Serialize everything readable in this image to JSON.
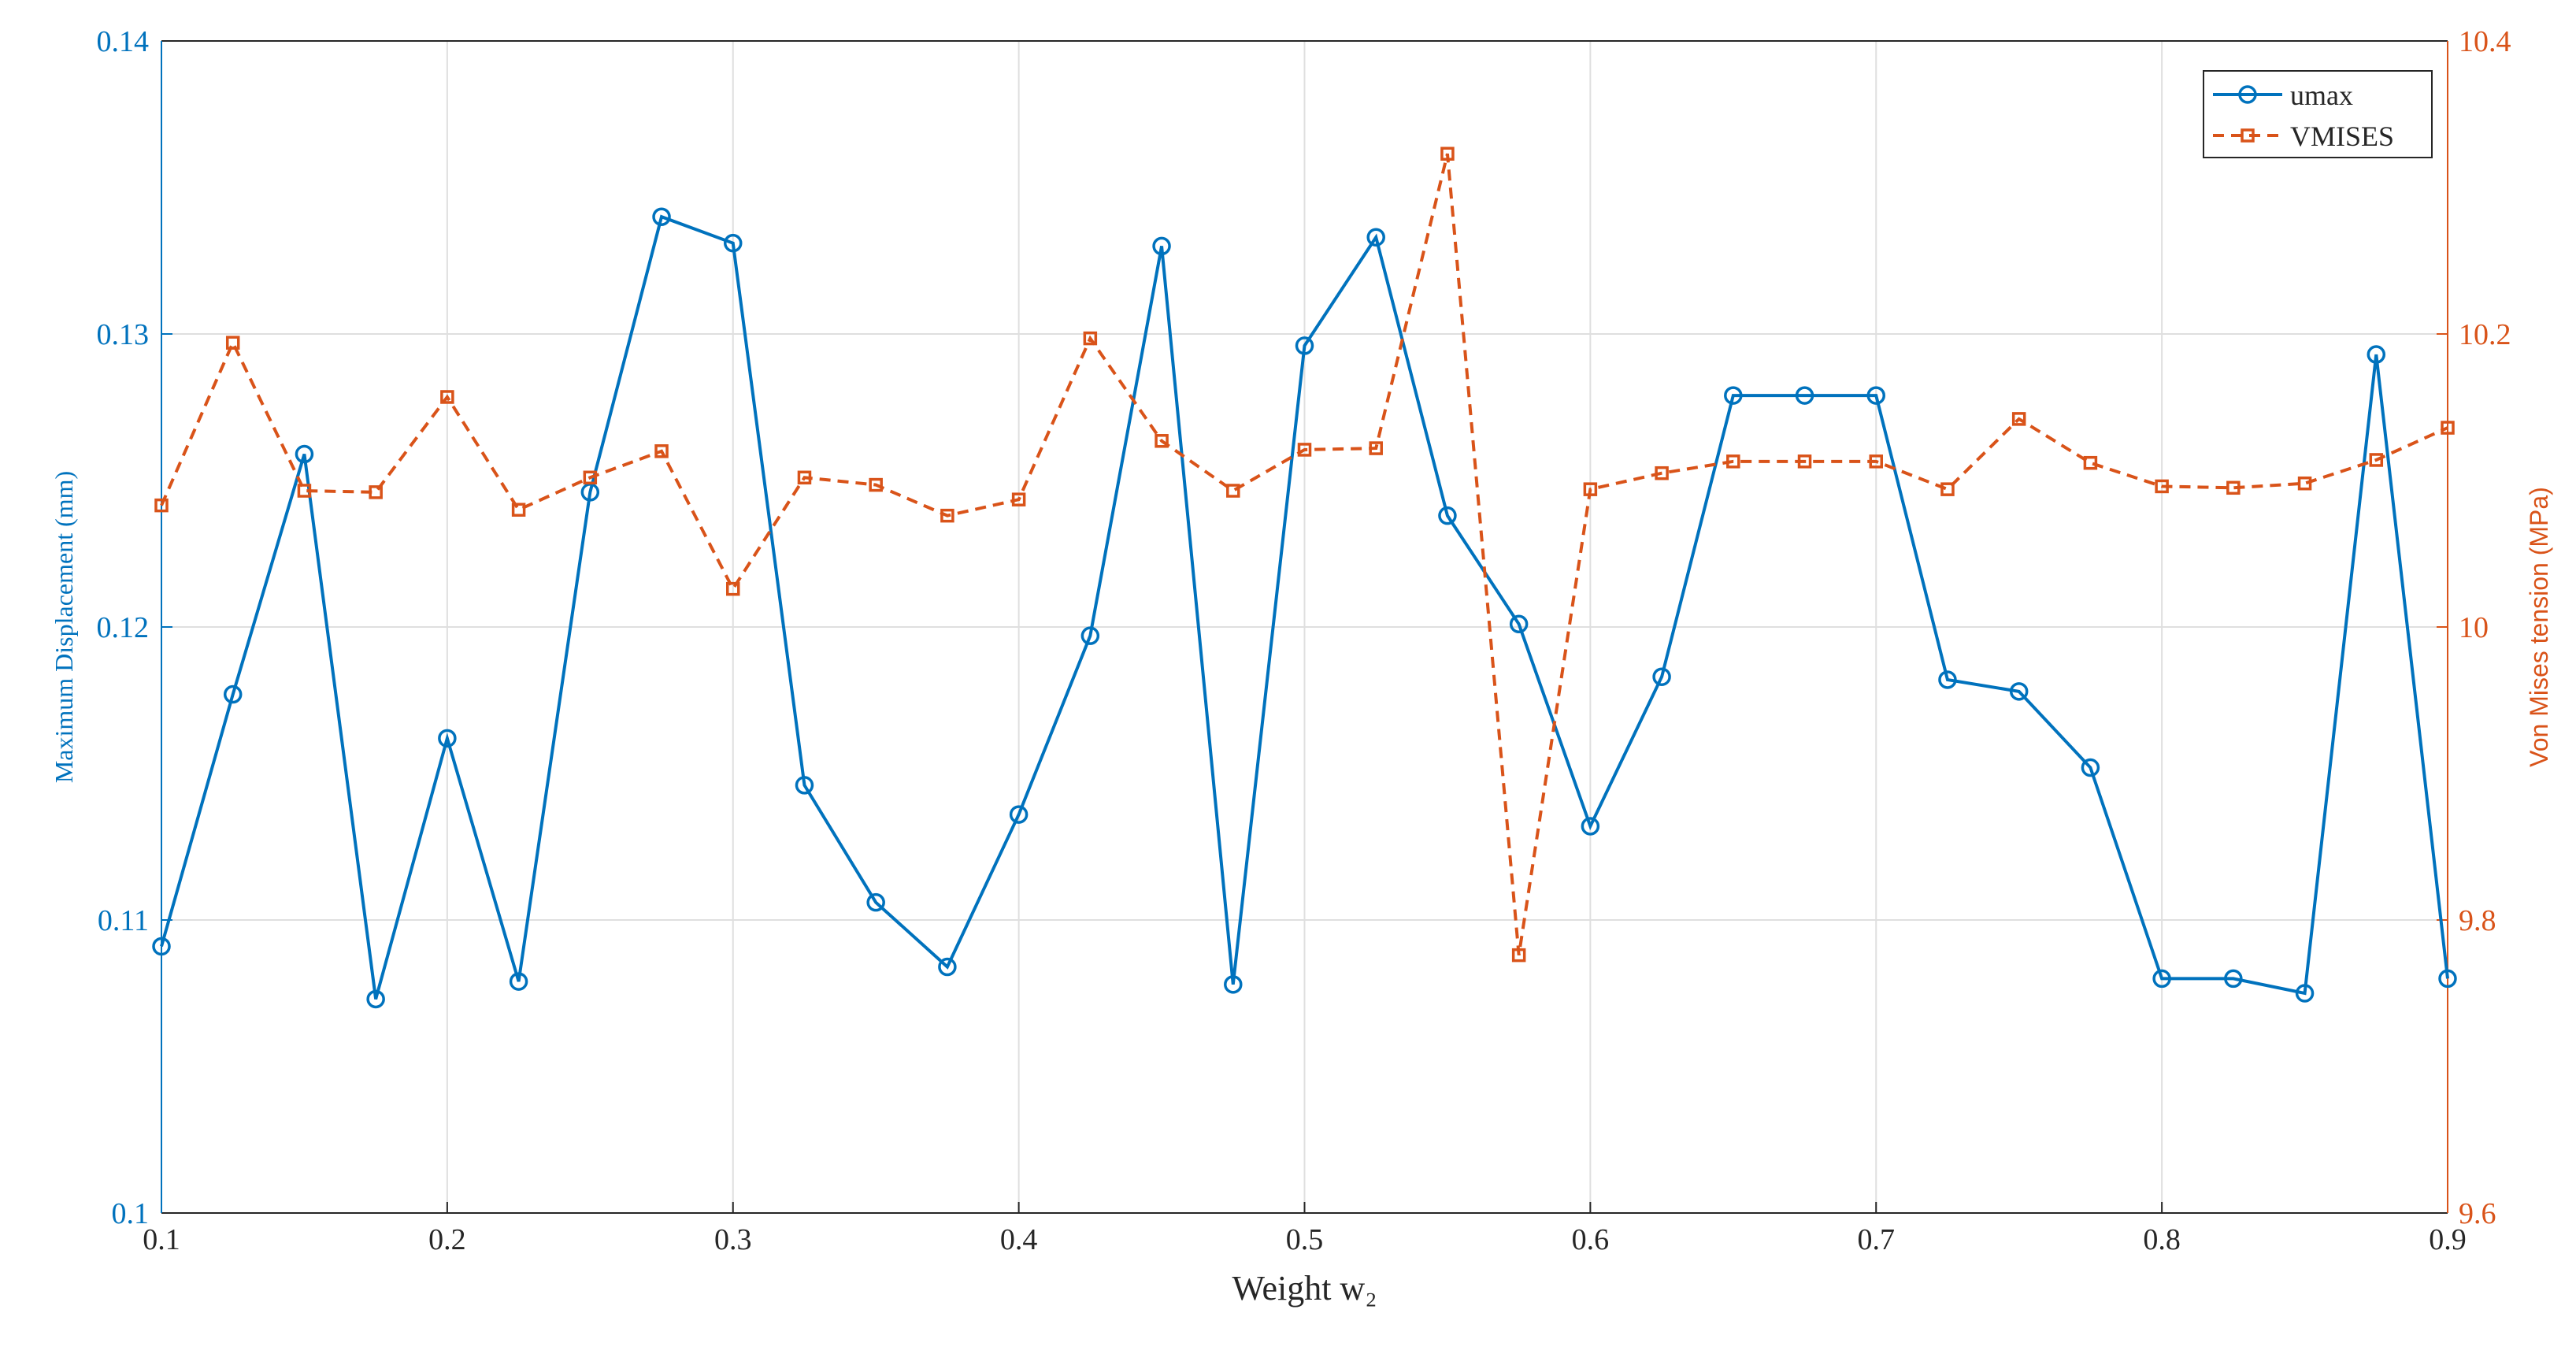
{
  "chart_data": {
    "type": "line",
    "xlabel": "Weight w₂",
    "ylabel": "Maximum Displacement (mm)",
    "y2label": "Von Mises tension (MPa)",
    "x": [
      0.1,
      0.125,
      0.15,
      0.175,
      0.2,
      0.225,
      0.25,
      0.275,
      0.3,
      0.325,
      0.35,
      0.375,
      0.4,
      0.425,
      0.45,
      0.475,
      0.5,
      0.525,
      0.55,
      0.575,
      0.6,
      0.625,
      0.65,
      0.675,
      0.7,
      0.725,
      0.75,
      0.775,
      0.8,
      0.825,
      0.85,
      0.875,
      0.9
    ],
    "xlim": [
      0.1,
      0.9
    ],
    "xticks": [
      0.1,
      0.2,
      0.3,
      0.4,
      0.5,
      0.6,
      0.7,
      0.8,
      0.9
    ],
    "ylim": [
      0.1,
      0.14
    ],
    "yticks": [
      0.1,
      0.11,
      0.12,
      0.13,
      0.14
    ],
    "y2lim": [
      9.6,
      10.4
    ],
    "y2ticks": [
      9.6,
      9.8,
      10,
      10.2,
      10.4
    ],
    "grid": true,
    "legend": "upper right",
    "series": [
      {
        "name": "umax",
        "color": "#0072bd",
        "marker": "circle",
        "linestyle": "solid",
        "values": [
          0.1091,
          0.1177,
          0.1259,
          0.1073,
          0.1162,
          0.1079,
          0.1246,
          0.134,
          0.1331,
          0.1146,
          0.1106,
          0.1084,
          0.1136,
          0.1197,
          0.133,
          0.1078,
          0.1296,
          0.1333,
          0.1238,
          0.1201,
          0.1132,
          0.1183,
          0.1279,
          0.1279,
          0.1279,
          0.1182,
          0.1178,
          0.1152,
          0.108,
          0.108,
          0.1075,
          0.1293,
          0.108
        ]
      },
      {
        "name": "VMISES",
        "color": "#d95319",
        "marker": "square",
        "linestyle": "dashed",
        "axis": "y2",
        "values": [
          10.083,
          10.194,
          10.093,
          10.092,
          10.157,
          10.08,
          10.102,
          10.12,
          10.026,
          10.102,
          10.097,
          10.076,
          10.087,
          10.197,
          10.127,
          10.093,
          10.121,
          10.122,
          10.323,
          9.776,
          10.094,
          10.105,
          10.113,
          10.113,
          10.113,
          10.094,
          10.142,
          10.112,
          10.096,
          10.095,
          10.098,
          10.114,
          10.136
        ]
      }
    ]
  }
}
